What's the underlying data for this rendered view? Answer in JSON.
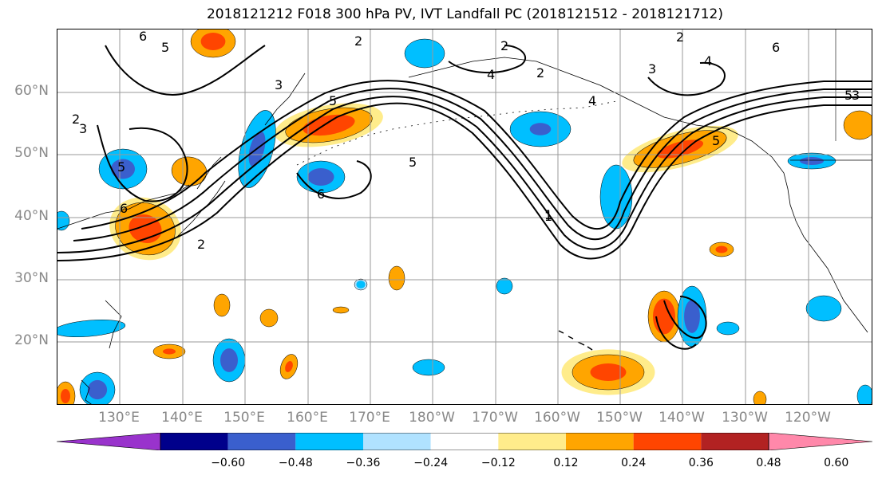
{
  "title": "2018121212 F018 300 hPa PV, IVT Landfall PC (2018121512 - 2018121712)",
  "lat_labels": [
    "60°N",
    "50°N",
    "40°N",
    "30°N",
    "20°N"
  ],
  "lon_labels": [
    "130°E",
    "140°E",
    "150°E",
    "160°E",
    "170°E",
    "180°W",
    "170°W",
    "160°W",
    "150°W",
    "140°W",
    "130°W",
    "120°W"
  ],
  "colorbar": {
    "tick_labels": [
      "−0.60",
      "−0.48",
      "−0.36",
      "−0.24",
      "−0.12",
      "0.12",
      "0.24",
      "0.36",
      "0.48",
      "0.60"
    ],
    "colors": [
      "#9933cc",
      "#00008b",
      "#3a5fcd",
      "#00bfff",
      "#b0e2ff",
      "#ffffff",
      "#ffec8b",
      "#ffa500",
      "#ff4500",
      "#b22222",
      "#ff88aa"
    ]
  },
  "contour_labels": [
    "6",
    "5",
    "2",
    "3",
    "2",
    "3",
    "5",
    "6",
    "2",
    "2",
    "5",
    "6",
    "1",
    "2",
    "4",
    "3",
    "6",
    "5",
    "2",
    "5",
    "3",
    "5",
    "1",
    "4",
    "4"
  ],
  "shading_colors": {
    "positive_low": "#ffec8b",
    "positive_mid": "#ffa500",
    "positive_high": "#ff4500",
    "negative_low": "#b0e2ff",
    "negative_mid": "#00bfff",
    "negative_high": "#3a5fcd"
  }
}
